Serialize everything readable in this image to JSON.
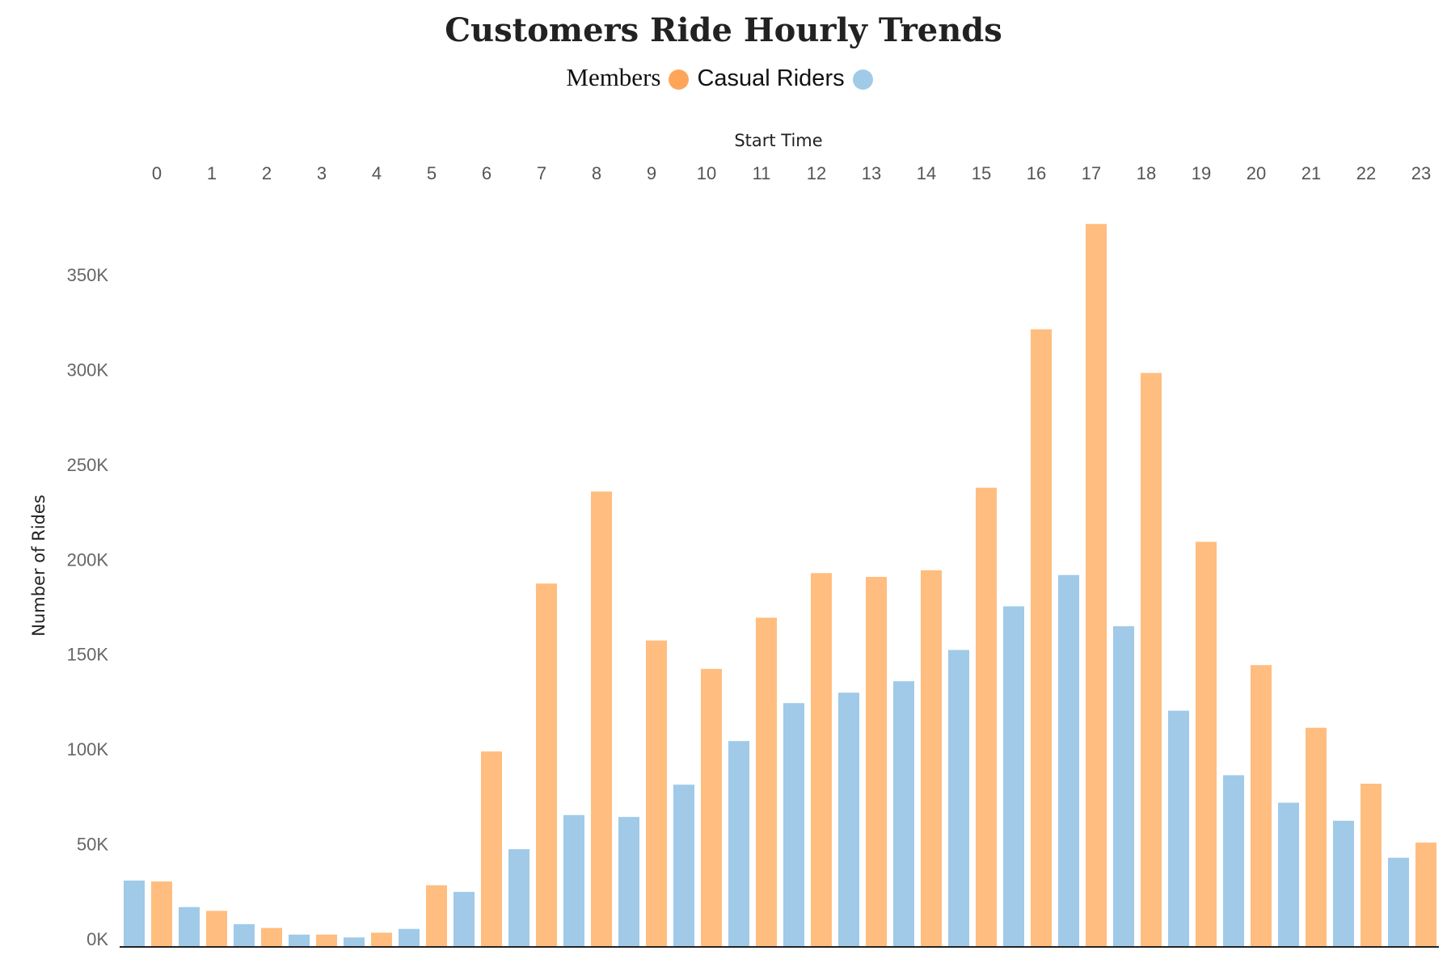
{
  "chart_data": {
    "type": "bar",
    "title": "Customers Ride Hourly Trends",
    "xlabel": "Start Time",
    "ylabel": "Number of Rides",
    "categories": [
      "0",
      "1",
      "2",
      "3",
      "4",
      "5",
      "6",
      "7",
      "8",
      "9",
      "10",
      "11",
      "12",
      "13",
      "14",
      "15",
      "16",
      "17",
      "18",
      "19",
      "20",
      "21",
      "22",
      "23"
    ],
    "series": [
      {
        "name": "Casual Riders",
        "color": "#a0cae8",
        "values": [
          35000,
          21000,
          12000,
          6500,
          5000,
          9500,
          29000,
          51500,
          69500,
          68500,
          85500,
          108500,
          128500,
          134000,
          140000,
          156500,
          179500,
          196000,
          169000,
          124500,
          90500,
          76000,
          66500,
          47000
        ]
      },
      {
        "name": "Members",
        "color": "#ffbd7f",
        "values": [
          34500,
          19000,
          10000,
          6500,
          7500,
          32500,
          103000,
          191500,
          240000,
          161500,
          146500,
          173500,
          197000,
          195000,
          198500,
          242000,
          325500,
          381000,
          302500,
          213500,
          148500,
          115500,
          86000,
          55000
        ]
      }
    ],
    "yticks": [
      "0K",
      "50K",
      "100K",
      "150K",
      "200K",
      "250K",
      "300K",
      "350K"
    ],
    "ytick_values": [
      0,
      50000,
      100000,
      150000,
      200000,
      250000,
      300000,
      350000
    ],
    "ylim": [
      0,
      400000
    ],
    "grid": false,
    "legend": {
      "position": "top-center",
      "items": [
        {
          "label": "Members",
          "color": "#ffa55a"
        },
        {
          "label": "Casual Riders",
          "color": "#a0cae8"
        }
      ]
    }
  }
}
